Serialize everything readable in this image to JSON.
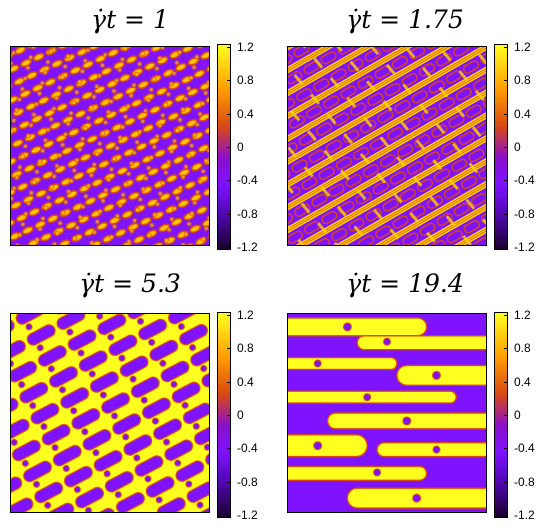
{
  "panels": [
    {
      "title": "γ̇t = 1"
    },
    {
      "title": "γ̇t = 1.75"
    },
    {
      "title": "γ̇t = 5.3"
    },
    {
      "title": "γ̇t = 19.4"
    }
  ],
  "colorbar": {
    "ticks": [
      "1.2",
      "0.8",
      "0.4",
      "0",
      "-0.4",
      "-0.8",
      "-1.2"
    ],
    "colors": {
      "high": "#ffff20",
      "mid": "#d84814",
      "low": "#7f12ff",
      "min": "#1a0030"
    }
  }
}
